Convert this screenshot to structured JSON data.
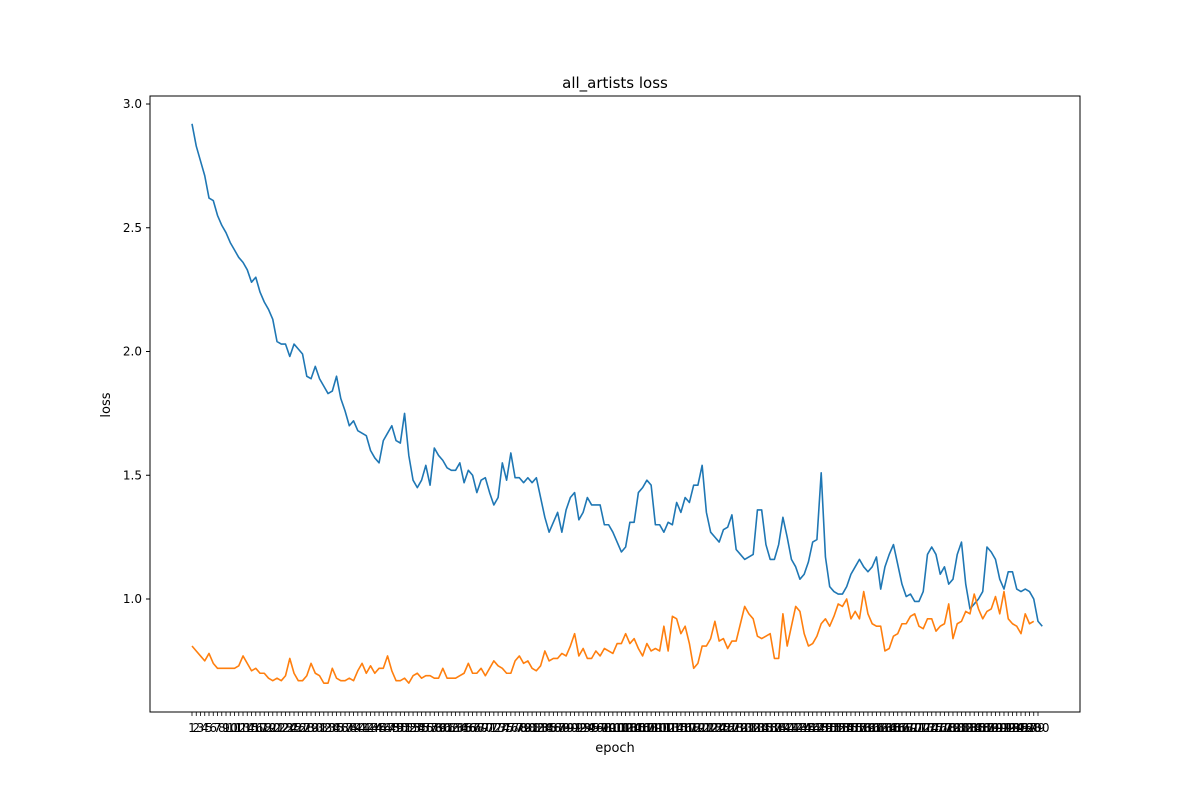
{
  "chart_data": {
    "type": "line",
    "title": "all_artists loss",
    "xlabel": "epoch",
    "ylabel": "loss",
    "xlim": [
      1,
      200
    ],
    "ylim": [
      0.65,
      3.0
    ],
    "yticks": [
      1.0,
      1.5,
      2.0,
      2.5,
      3.0
    ],
    "ytick_labels": [
      "1.0",
      "1.5",
      "2.0",
      "2.5",
      "3.0"
    ],
    "grid": false,
    "legend": "none",
    "colors": [
      "#1f77b4",
      "#ff7f0e"
    ],
    "series": [
      {
        "values": [
          2.92,
          2.83,
          2.77,
          2.71,
          2.62,
          2.61,
          2.55,
          2.51,
          2.48,
          2.44,
          2.41,
          2.38,
          2.36,
          2.33,
          2.28,
          2.3,
          2.24,
          2.2,
          2.17,
          2.13,
          2.04,
          2.03,
          2.03,
          1.98,
          2.03,
          2.01,
          1.99,
          1.9,
          1.89,
          1.94,
          1.89,
          1.86,
          1.83,
          1.84,
          1.9,
          1.81,
          1.76,
          1.7,
          1.72,
          1.68,
          1.67,
          1.66,
          1.6,
          1.57,
          1.55,
          1.64,
          1.67,
          1.7,
          1.64,
          1.63,
          1.75,
          1.58,
          1.48,
          1.45,
          1.48,
          1.54,
          1.46,
          1.61,
          1.58,
          1.56,
          1.53,
          1.52,
          1.52,
          1.55,
          1.47,
          1.52,
          1.5,
          1.43,
          1.48,
          1.49,
          1.43,
          1.38,
          1.41,
          1.55,
          1.48,
          1.59,
          1.49,
          1.49,
          1.47,
          1.49,
          1.47,
          1.49,
          1.41,
          1.33,
          1.27,
          1.31,
          1.35,
          1.27,
          1.36,
          1.41,
          1.43,
          1.32,
          1.35,
          1.41,
          1.38,
          1.38,
          1.38,
          1.3,
          1.3,
          1.27,
          1.23,
          1.19,
          1.21,
          1.31,
          1.31,
          1.43,
          1.45,
          1.48,
          1.46,
          1.3,
          1.3,
          1.27,
          1.31,
          1.3,
          1.39,
          1.35,
          1.41,
          1.39,
          1.46,
          1.46,
          1.54,
          1.35,
          1.27,
          1.25,
          1.23,
          1.28,
          1.29,
          1.34,
          1.2,
          1.18,
          1.16,
          1.17,
          1.18,
          1.36,
          1.36,
          1.22,
          1.16,
          1.16,
          1.22,
          1.33,
          1.25,
          1.16,
          1.13,
          1.08,
          1.1,
          1.15,
          1.23,
          1.24,
          1.51,
          1.17,
          1.05,
          1.03,
          1.02,
          1.02,
          1.05,
          1.1,
          1.13,
          1.16,
          1.13,
          1.11,
          1.13,
          1.17,
          1.04,
          1.13,
          1.18,
          1.22,
          1.14,
          1.06,
          1.01,
          1.02,
          0.99,
          0.99,
          1.03,
          1.18,
          1.21,
          1.18,
          1.1,
          1.13,
          1.06,
          1.08,
          1.18,
          1.23,
          1.06,
          0.96,
          0.98,
          1.0,
          1.03,
          1.21,
          1.19,
          1.16,
          1.08,
          1.04,
          1.11,
          1.11,
          1.04,
          1.03,
          1.04,
          1.03,
          1.0,
          0.91,
          0.89
        ]
      },
      {
        "values": [
          0.81,
          0.79,
          0.77,
          0.75,
          0.78,
          0.74,
          0.72,
          0.72,
          0.72,
          0.72,
          0.72,
          0.73,
          0.77,
          0.74,
          0.71,
          0.72,
          0.7,
          0.7,
          0.68,
          0.67,
          0.68,
          0.67,
          0.69,
          0.76,
          0.7,
          0.67,
          0.67,
          0.69,
          0.74,
          0.7,
          0.69,
          0.66,
          0.66,
          0.72,
          0.68,
          0.67,
          0.67,
          0.68,
          0.67,
          0.71,
          0.74,
          0.7,
          0.73,
          0.7,
          0.72,
          0.72,
          0.77,
          0.71,
          0.67,
          0.67,
          0.68,
          0.66,
          0.69,
          0.7,
          0.68,
          0.69,
          0.69,
          0.68,
          0.68,
          0.72,
          0.68,
          0.68,
          0.68,
          0.69,
          0.7,
          0.74,
          0.7,
          0.7,
          0.72,
          0.69,
          0.72,
          0.75,
          0.73,
          0.72,
          0.7,
          0.7,
          0.75,
          0.77,
          0.74,
          0.75,
          0.72,
          0.71,
          0.73,
          0.79,
          0.75,
          0.76,
          0.76,
          0.78,
          0.77,
          0.81,
          0.86,
          0.77,
          0.8,
          0.76,
          0.76,
          0.79,
          0.77,
          0.8,
          0.79,
          0.78,
          0.82,
          0.82,
          0.86,
          0.82,
          0.84,
          0.8,
          0.77,
          0.82,
          0.79,
          0.8,
          0.79,
          0.89,
          0.79,
          0.93,
          0.92,
          0.86,
          0.89,
          0.82,
          0.72,
          0.74,
          0.81,
          0.81,
          0.84,
          0.91,
          0.83,
          0.84,
          0.8,
          0.83,
          0.83,
          0.9,
          0.97,
          0.94,
          0.92,
          0.85,
          0.84,
          0.85,
          0.86,
          0.76,
          0.76,
          0.94,
          0.81,
          0.89,
          0.97,
          0.95,
          0.86,
          0.81,
          0.82,
          0.85,
          0.9,
          0.92,
          0.89,
          0.93,
          0.98,
          0.97,
          1.0,
          0.92,
          0.95,
          0.92,
          1.03,
          0.94,
          0.9,
          0.89,
          0.89,
          0.79,
          0.8,
          0.85,
          0.86,
          0.9,
          0.9,
          0.93,
          0.94,
          0.89,
          0.88,
          0.92,
          0.92,
          0.87,
          0.89,
          0.9,
          0.98,
          0.84,
          0.9,
          0.91,
          0.95,
          0.94,
          1.02,
          0.96,
          0.92,
          0.95,
          0.96,
          1.01,
          0.94,
          1.03,
          0.92,
          0.9,
          0.89,
          0.86,
          0.94,
          0.9,
          0.91
        ]
      }
    ]
  }
}
